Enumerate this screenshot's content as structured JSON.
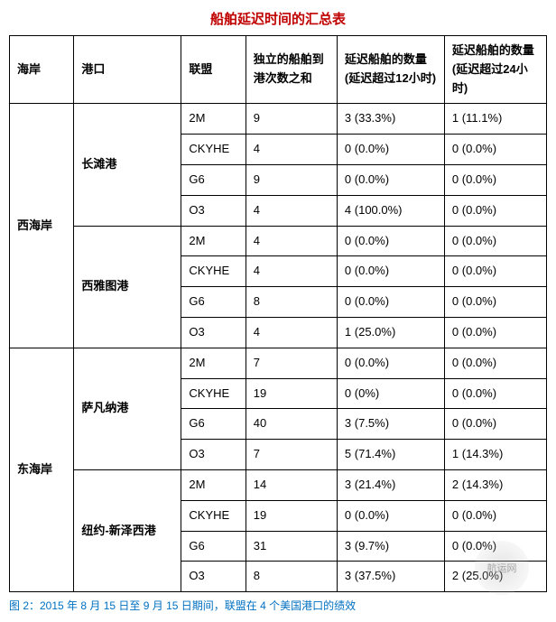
{
  "title": "船舶延迟时间的汇总表",
  "title_color": "#c00000",
  "headers": {
    "coast": "海岸",
    "port": "港口",
    "alliance": "联盟",
    "arrivals": "独立的船舶到港次数之和",
    "delay12": "延迟船舶的数量(延迟超过12小时)",
    "delay24": "延迟船舶的数量(延迟超过24小时)"
  },
  "coasts": [
    {
      "name": "西海岸",
      "ports": [
        {
          "name": "长滩港",
          "rows": [
            {
              "alliance": "2M",
              "arrivals": "9",
              "d12": "3 (33.3%)",
              "d24": "1 (11.1%)"
            },
            {
              "alliance": "CKYHE",
              "arrivals": "4",
              "d12": "0 (0.0%)",
              "d24": "0 (0.0%)"
            },
            {
              "alliance": "G6",
              "arrivals": "9",
              "d12": "0 (0.0%)",
              "d24": "0 (0.0%)"
            },
            {
              "alliance": "O3",
              "arrivals": "4",
              "d12": "4 (100.0%)",
              "d24": "0 (0.0%)"
            }
          ]
        },
        {
          "name": "西雅图港",
          "rows": [
            {
              "alliance": "2M",
              "arrivals": "4",
              "d12": "0 (0.0%)",
              "d24": "0 (0.0%)"
            },
            {
              "alliance": "CKYHE",
              "arrivals": "4",
              "d12": "0 (0.0%)",
              "d24": "0 (0.0%)"
            },
            {
              "alliance": "G6",
              "arrivals": "8",
              "d12": "0 (0.0%)",
              "d24": "0 (0.0%)"
            },
            {
              "alliance": "O3",
              "arrivals": "4",
              "d12": "1 (25.0%)",
              "d24": "0 (0.0%)"
            }
          ]
        }
      ]
    },
    {
      "name": "东海岸",
      "ports": [
        {
          "name": "萨凡纳港",
          "rows": [
            {
              "alliance": "2M",
              "arrivals": "7",
              "d12": "0 (0.0%)",
              "d24": "0 (0.0%)"
            },
            {
              "alliance": "CKYHE",
              "arrivals": "19",
              "d12": "0 (0%)",
              "d24": "0 (0.0%)"
            },
            {
              "alliance": "G6",
              "arrivals": "40",
              "d12": "3 (7.5%)",
              "d24": "0 (0.0%)"
            },
            {
              "alliance": "O3",
              "arrivals": "7",
              "d12": "5 (71.4%)",
              "d24": "1 (14.3%)"
            }
          ]
        },
        {
          "name": "纽约-新泽西港",
          "rows": [
            {
              "alliance": "2M",
              "arrivals": "14",
              "d12": "3 (21.4%)",
              "d24": "2 (14.3%)"
            },
            {
              "alliance": "CKYHE",
              "arrivals": "19",
              "d12": "0 (0.0%)",
              "d24": "0 (0.0%)"
            },
            {
              "alliance": "G6",
              "arrivals": "31",
              "d12": "3 (9.7%)",
              "d24": "0 (0.0%)"
            },
            {
              "alliance": "O3",
              "arrivals": "8",
              "d12": "3 (37.5%)",
              "d24": "2 (25.0%)"
            }
          ]
        }
      ]
    }
  ],
  "caption": "图 2：2015 年 8 月 15 日至 9 月 15 日期间，联盟在 4 个美国港口的绩效",
  "caption_color": "#0070c0",
  "watermark_text": "航运网"
}
